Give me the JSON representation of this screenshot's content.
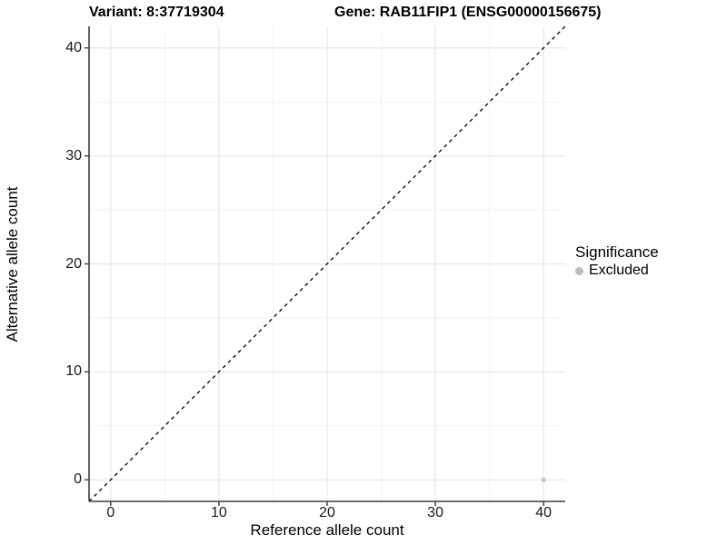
{
  "titles": {
    "variant": "Variant: 8:37719304",
    "gene": "Gene: RAB11FIP1 (ENSG00000156675)"
  },
  "chart_data": {
    "type": "scatter",
    "xlabel": "Reference allele count",
    "ylabel": "Alternative allele count",
    "xlim": [
      -2,
      42
    ],
    "ylim": [
      -2,
      42
    ],
    "x_ticks": [
      0,
      10,
      20,
      30,
      40
    ],
    "y_ticks": [
      0,
      10,
      20,
      30,
      40
    ],
    "x_minor_ticks": [
      5,
      15,
      25,
      35
    ],
    "y_minor_ticks": [
      5,
      15,
      25,
      35
    ],
    "grid": true,
    "identity_line": {
      "equation": "y = x",
      "style": "dashed",
      "color": "#000000"
    },
    "series": [
      {
        "name": "Excluded",
        "color": "#bdbdbd",
        "points": [
          {
            "x": 40,
            "y": 0
          }
        ]
      }
    ],
    "legend": {
      "title": "Significance",
      "position": "right",
      "items": [
        {
          "label": "Excluded",
          "color": "#bdbdbd"
        }
      ]
    }
  },
  "colors": {
    "background": "#ffffff",
    "grid_major": "#e8e8e8",
    "grid_minor": "#f3f3f3",
    "axis_line": "#3d3d3d",
    "tick_text": "#1a1a1a",
    "title_text": "#000000",
    "point": "#c4c4c4",
    "identity_line": "#000000"
  }
}
